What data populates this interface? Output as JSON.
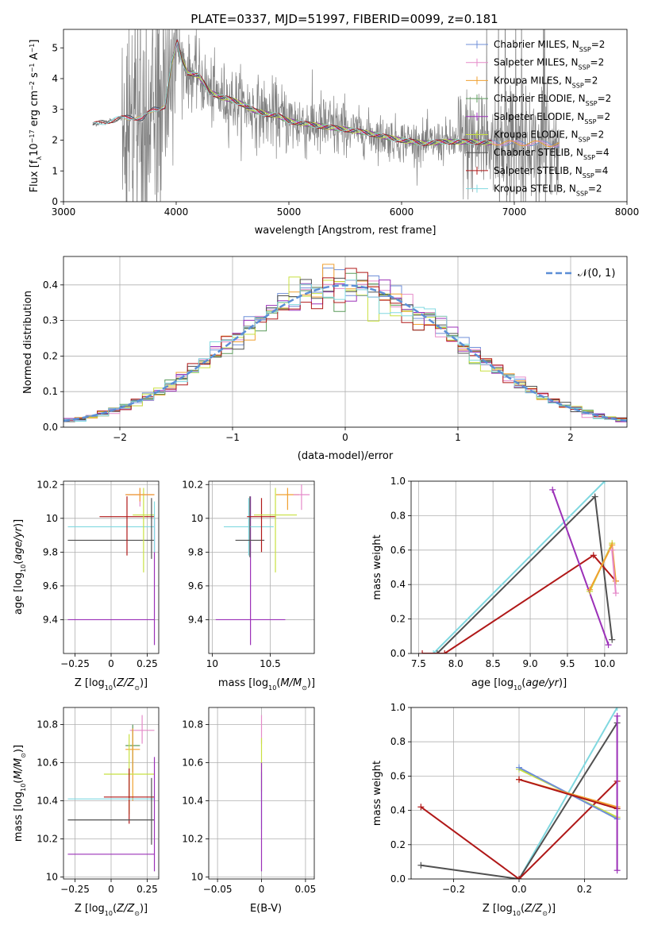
{
  "figure_title": "PLATE=0337, MJD=51997, FIBERID=0099, z=0.181",
  "colors": {
    "spectrum": "#808080",
    "Chabrier MILES": "#6f8fd8",
    "Salpeter MILES": "#e58ac9",
    "Kroupa MILES": "#f0a030",
    "Chabrier ELODIE": "#5a9a5a",
    "Salpeter ELODIE": "#9b30b8",
    "Kroupa ELODIE": "#c8e040",
    "Chabrier STELIB": "#505050",
    "Salpeter STELIB": "#b01818",
    "Kroupa STELIB": "#80d8e0",
    "normal_curve": "#5b8ed6"
  },
  "chart_data": [
    {
      "type": "line",
      "xlabel": "wavelength [Angstrom, rest frame]",
      "ylabel": "Flux [f",
      "ylabel_parts": [
        "λ",
        "10",
        "−17",
        " erg cm",
        "−2",
        " s",
        "−1",
        " A",
        "−1",
        "]"
      ],
      "xlim": [
        3000,
        8000
      ],
      "ylim": [
        0,
        5.6
      ],
      "xticks": [
        3000,
        4000,
        5000,
        6000,
        7000,
        8000
      ],
      "yticks": [
        0,
        1,
        2,
        3,
        4,
        5
      ],
      "spectrum_range": [
        3260,
        7400
      ],
      "continuum": [
        [
          3260,
          2.5
        ],
        [
          3350,
          2.58
        ],
        [
          3500,
          2.7
        ],
        [
          3600,
          2.75
        ],
        [
          3700,
          2.7
        ],
        [
          3800,
          3.0
        ],
        [
          3900,
          3.1
        ],
        [
          3960,
          4.5
        ],
        [
          4010,
          5.2
        ],
        [
          4050,
          4.6
        ],
        [
          4100,
          4.2
        ],
        [
          4200,
          4.1
        ],
        [
          4300,
          3.55
        ],
        [
          4400,
          3.4
        ],
        [
          4500,
          3.3
        ],
        [
          4600,
          3.15
        ],
        [
          4700,
          2.95
        ],
        [
          4800,
          2.85
        ],
        [
          4900,
          2.8
        ],
        [
          5000,
          2.62
        ],
        [
          5200,
          2.5
        ],
        [
          5400,
          2.4
        ],
        [
          5600,
          2.3
        ],
        [
          5800,
          2.15
        ],
        [
          6000,
          2.0
        ],
        [
          6200,
          1.9
        ],
        [
          6400,
          1.95
        ],
        [
          6600,
          1.95
        ],
        [
          6800,
          1.92
        ],
        [
          7000,
          1.9
        ],
        [
          7200,
          1.9
        ],
        [
          7400,
          1.85
        ]
      ],
      "legend_labels": [
        {
          "name": "Chabrier MILES, N",
          "ssp": "2"
        },
        {
          "name": "Salpeter MILES, N",
          "ssp": "2"
        },
        {
          "name": "Kroupa MILES, N",
          "ssp": "2"
        },
        {
          "name": "Chabrier ELODIE, N",
          "ssp": "2"
        },
        {
          "name": "Salpeter ELODIE, N",
          "ssp": "2"
        },
        {
          "name": "Kroupa ELODIE, N",
          "ssp": "2"
        },
        {
          "name": "Chabrier STELIB, N",
          "ssp": "4"
        },
        {
          "name": "Salpeter STELIB, N",
          "ssp": "4"
        },
        {
          "name": "Kroupa STELIB, N",
          "ssp": "2"
        }
      ],
      "ssp_subscript": "SSP",
      "legend_position": "upper-right"
    },
    {
      "type": "histogram",
      "xlabel": "(data-model)/error",
      "ylabel": "Normed distribution",
      "xlim": [
        -2.5,
        2.5
      ],
      "ylim": [
        0,
        0.48
      ],
      "xticks": [
        -2,
        -1,
        0,
        1,
        2
      ],
      "yticks": [
        0.0,
        0.1,
        0.2,
        0.3,
        0.4
      ],
      "bin_width": 0.1,
      "bin_start": -2.5,
      "curve_label": "𝒩(0, 1)",
      "legend_position": "upper-right"
    },
    {
      "type": "scatter",
      "xlabel": "Z [log",
      "ylabel": "age  [log",
      "xlim": [
        -0.33,
        0.33
      ],
      "ylim": [
        9.2,
        10.22
      ],
      "xticks": [
        -0.25,
        0.0,
        0.25,
        0.5
      ],
      "yticks": [
        9.4,
        9.6,
        9.8,
        10.0,
        10.2
      ],
      "points": [
        {
          "series": "Kroupa STELIB",
          "x": [
            -0.3,
            0.3
          ],
          "y": 9.95,
          "yerr": [
            9.95,
            9.95
          ]
        },
        {
          "series": "Chabrier STELIB",
          "x": [
            -0.3,
            0.3
          ],
          "y": 9.87,
          "yerr": [
            9.87,
            9.87
          ]
        },
        {
          "series": "Salpeter ELODIE",
          "x": [
            -0.3,
            0.3
          ],
          "y": 9.4,
          "yerr": [
            9.4,
            9.4
          ]
        },
        {
          "series": "Salpeter STELIB",
          "x": [
            -0.08,
            0.3
          ],
          "y": 10.01,
          "yerr": [
            9.78,
            10.13
          ]
        },
        {
          "series": "Kroupa ELODIE",
          "x": [
            0.15,
            0.3
          ],
          "y": 10.02,
          "yerr": [
            9.68,
            10.18
          ]
        },
        {
          "series": "Salpeter MILES",
          "x": [
            0.1,
            0.3
          ],
          "y": 10.14,
          "yerr": [
            10.07,
            10.18
          ]
        },
        {
          "series": "Kroupa MILES",
          "x": [
            0.1,
            0.3
          ],
          "y": 10.14,
          "yerr": [
            10.1,
            10.18
          ]
        },
        {
          "series": "Chabrier STELIB",
          "x": [
            0.28,
            0.28
          ],
          "y": 9.95,
          "yerr": [
            9.76,
            10.12
          ]
        },
        {
          "series": "Salpeter ELODIE",
          "x": [
            0.3,
            0.3
          ],
          "y": 9.6,
          "yerr": [
            9.25,
            10.0
          ]
        },
        {
          "series": "Kroupa STELIB",
          "x": [
            0.3,
            0.3
          ],
          "y": 9.95,
          "yerr": [
            9.8,
            10.1
          ]
        }
      ]
    },
    {
      "type": "scatter",
      "xlabel": "mass [log",
      "xlim": [
        9.97,
        10.88
      ],
      "ylim": [
        9.2,
        10.22
      ],
      "xticks": [
        10.0,
        10.5
      ],
      "yticks": [
        9.4,
        9.6,
        9.8,
        10.0,
        10.2
      ],
      "points": [
        {
          "series": "Salpeter ELODIE",
          "x": [
            10.03,
            10.63
          ],
          "y": 9.4,
          "yerr": [
            9.25,
            10.13
          ]
        },
        {
          "series": "Kroupa STELIB",
          "x": [
            10.1,
            10.53
          ],
          "y": 9.95,
          "yerr": [
            9.78,
            10.12
          ]
        },
        {
          "series": "Chabrier STELIB",
          "x": [
            10.2,
            10.45
          ],
          "y": 9.87,
          "yerr": [
            9.77,
            10.13
          ]
        },
        {
          "series": "Salpeter STELIB",
          "x": [
            10.3,
            10.55
          ],
          "y": 10.01,
          "yerr": [
            9.8,
            10.12
          ]
        },
        {
          "series": "Kroupa ELODIE",
          "x": [
            10.36,
            10.73
          ],
          "y": 10.02,
          "yerr": [
            9.68,
            10.18
          ]
        },
        {
          "series": "Kroupa MILES",
          "x": [
            10.55,
            10.75
          ],
          "y": 10.14,
          "yerr": [
            10.05,
            10.18
          ]
        },
        {
          "series": "Salpeter MILES",
          "x": [
            10.7,
            10.84
          ],
          "y": 10.14,
          "yerr": [
            10.05,
            10.2
          ]
        }
      ]
    },
    {
      "type": "line",
      "xlabel": "age  [log",
      "ylabel": "mass weight",
      "xlim": [
        7.4,
        10.3
      ],
      "ylim": [
        0,
        1.0
      ],
      "xticks": [
        7.5,
        8.0,
        8.5,
        9.0,
        9.5,
        10.0
      ],
      "yticks": [
        0.0,
        0.2,
        0.4,
        0.6,
        0.8,
        1.0
      ],
      "series": [
        {
          "name": "Kroupa STELIB",
          "x": [
            7.7,
            10.0
          ],
          "y": [
            0.0,
            1.0
          ]
        },
        {
          "name": "Chabrier STELIB",
          "x": [
            7.75,
            9.87,
            10.1
          ],
          "y": [
            0.0,
            0.91,
            0.08
          ]
        },
        {
          "name": "Salpeter STELIB",
          "x": [
            7.55,
            7.85,
            9.85,
            10.15
          ],
          "y": [
            0.0,
            0.0,
            0.57,
            0.42
          ]
        },
        {
          "name": "Salpeter ELODIE",
          "x": [
            9.3,
            10.05
          ],
          "y": [
            0.95,
            0.05
          ]
        },
        {
          "name": "Kroupa ELODIE",
          "x": [
            9.8,
            10.1
          ],
          "y": [
            0.36,
            0.64
          ]
        },
        {
          "name": "Kroupa MILES",
          "x": [
            9.8,
            10.1,
            10.15
          ],
          "y": [
            0.37,
            0.63,
            0.42
          ]
        },
        {
          "name": "Salpeter MILES",
          "x": [
            10.1,
            10.15
          ],
          "y": [
            0.6,
            0.35
          ]
        }
      ]
    },
    {
      "type": "scatter",
      "xlabel": "Z [log",
      "ylabel": "mass [log",
      "xlim": [
        -0.33,
        0.33
      ],
      "ylim": [
        9.99,
        10.89
      ],
      "xticks": [
        -0.25,
        0.0,
        0.25,
        0.5
      ],
      "yticks": [
        10.0,
        10.2,
        10.4,
        10.6,
        10.8
      ],
      "points": [
        {
          "series": "Salpeter MILES",
          "x": [
            0.13,
            0.3
          ],
          "y": 10.77,
          "yerr": [
            10.7,
            10.85
          ]
        },
        {
          "series": "Chabrier ELODIE",
          "x": [
            0.1,
            0.2
          ],
          "y": 10.69,
          "yerr": [
            10.55,
            10.8
          ]
        },
        {
          "series": "Kroupa MILES",
          "x": [
            0.1,
            0.2
          ],
          "y": 10.67,
          "yerr": [
            10.4,
            10.78
          ]
        },
        {
          "series": "Kroupa ELODIE",
          "x": [
            -0.05,
            0.3
          ],
          "y": 10.54,
          "yerr": [
            10.33,
            10.75
          ]
        },
        {
          "series": "Salpeter STELIB",
          "x": [
            -0.05,
            0.3
          ],
          "y": 10.42,
          "yerr": [
            10.28,
            10.57
          ]
        },
        {
          "series": "Kroupa STELIB",
          "x": [
            -0.3,
            0.3
          ],
          "y": 10.41,
          "yerr": [
            10.41,
            10.41
          ]
        },
        {
          "series": "Chabrier STELIB",
          "x": [
            -0.3,
            0.3
          ],
          "y": 10.3,
          "yerr": [
            10.3,
            10.3
          ]
        },
        {
          "series": "Salpeter ELODIE",
          "x": [
            -0.3,
            0.3
          ],
          "y": 10.12,
          "yerr": [
            10.12,
            10.12
          ]
        },
        {
          "series": "Chabrier STELIB",
          "x": [
            0.28,
            0.28
          ],
          "y": 10.3,
          "yerr": [
            10.17,
            10.52
          ]
        },
        {
          "series": "Salpeter ELODIE",
          "x": [
            0.3,
            0.3
          ],
          "y": 10.3,
          "yerr": [
            10.03,
            10.63
          ]
        }
      ]
    },
    {
      "type": "scatter",
      "xlabel": "E(B-V)",
      "xlim": [
        -0.06,
        0.06
      ],
      "ylim": [
        9.99,
        10.89
      ],
      "xticks": [
        -0.05,
        0.0,
        0.05
      ],
      "yticks": [
        10.0,
        10.2,
        10.4,
        10.6,
        10.8
      ],
      "points": [
        {
          "series": "Salpeter MILES",
          "x": [
            0,
            0
          ],
          "y": 10.77,
          "yerr": [
            10.7,
            10.85
          ]
        },
        {
          "series": "Kroupa ELODIE",
          "x": [
            0,
            0
          ],
          "y": 10.6,
          "yerr": [
            10.45,
            10.73
          ]
        },
        {
          "series": "Kroupa STELIB",
          "x": [
            0,
            0
          ],
          "y": 10.4,
          "yerr": [
            10.25,
            10.55
          ]
        },
        {
          "series": "Salpeter ELODIE",
          "x": [
            0,
            0
          ],
          "y": 10.2,
          "yerr": [
            10.03,
            10.6
          ]
        }
      ]
    },
    {
      "type": "line",
      "xlabel": "Z [log",
      "ylabel": "mass weight",
      "xlim": [
        -0.33,
        0.33
      ],
      "ylim": [
        0,
        1.0
      ],
      "xticks": [
        -0.2,
        0.0,
        0.2
      ],
      "yticks": [
        0.0,
        0.2,
        0.4,
        0.6,
        0.8,
        1.0
      ],
      "series": [
        {
          "name": "Kroupa STELIB",
          "x": [
            0.0,
            0.3
          ],
          "y": [
            0.0,
            1.0
          ]
        },
        {
          "name": "Chabrier STELIB",
          "x": [
            -0.3,
            0.0,
            0.3
          ],
          "y": [
            0.08,
            0.0,
            0.91
          ]
        },
        {
          "name": "Salpeter STELIB",
          "x": [
            -0.3,
            0.0,
            0.3
          ],
          "y": [
            0.42,
            0.0,
            0.57
          ]
        },
        {
          "name": "Kroupa ELODIE",
          "x": [
            0.0,
            0.3
          ],
          "y": [
            0.64,
            0.36
          ]
        },
        {
          "name": "Chabrier MILES",
          "x": [
            0.0,
            0.3
          ],
          "y": [
            0.65,
            0.35
          ]
        },
        {
          "name": "Kroupa MILES",
          "x": [
            0.0,
            0.3
          ],
          "y": [
            0.58,
            0.42
          ]
        },
        {
          "name": "Salpeter STELIB",
          "x": [
            0.0,
            0.3
          ],
          "y": [
            0.58,
            0.41
          ]
        },
        {
          "name": "Salpeter ELODIE",
          "x": [
            0.3,
            0.3
          ],
          "y": [
            0.05,
            0.95
          ]
        }
      ]
    }
  ]
}
